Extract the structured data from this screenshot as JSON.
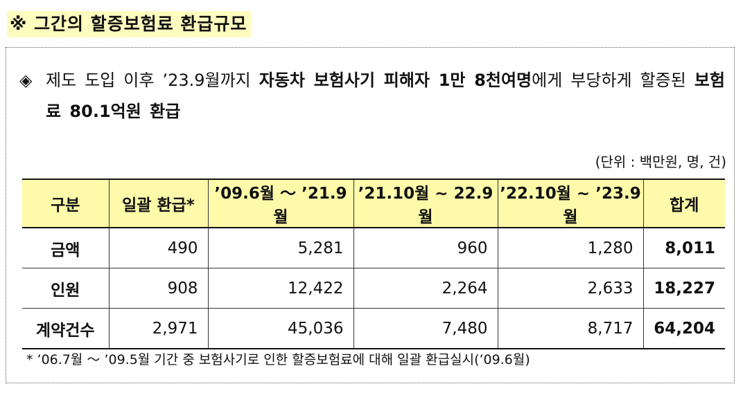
{
  "header": {
    "title": "※ 그간의 할증보험료 환급규모"
  },
  "summary": {
    "bullet": "◈",
    "parts": [
      "제도 도입 이후 ’23.9월까지 ",
      "자동차 보험사기 피해자 1만 8천여명",
      "에게 부당하게 할증된 ",
      "보험료 80.1억원 환급"
    ]
  },
  "unit_note": "(단위 : 백만원, 명, 건)",
  "table": {
    "columns": [
      "구분",
      "일괄 환급*",
      "’09.6월 ～ ’21.9월",
      "’21.10월 ~ 22.9월",
      "’22.10월 ~ ’23.9월",
      "합계"
    ],
    "rows": [
      [
        "금액",
        "490",
        "5,281",
        "960",
        "1,280",
        "8,011"
      ],
      [
        "인원",
        "908",
        "12,422",
        "2,264",
        "2,633",
        "18,227"
      ],
      [
        "계약건수",
        "2,971",
        "45,036",
        "7,480",
        "8,717",
        "64,204"
      ]
    ]
  },
  "footnote": "* ’06.7월 ～ ’09.5월 기간 중 보험사기로 인한 할증보험료에 대해 일괄 환급실시(’09.6월)"
}
